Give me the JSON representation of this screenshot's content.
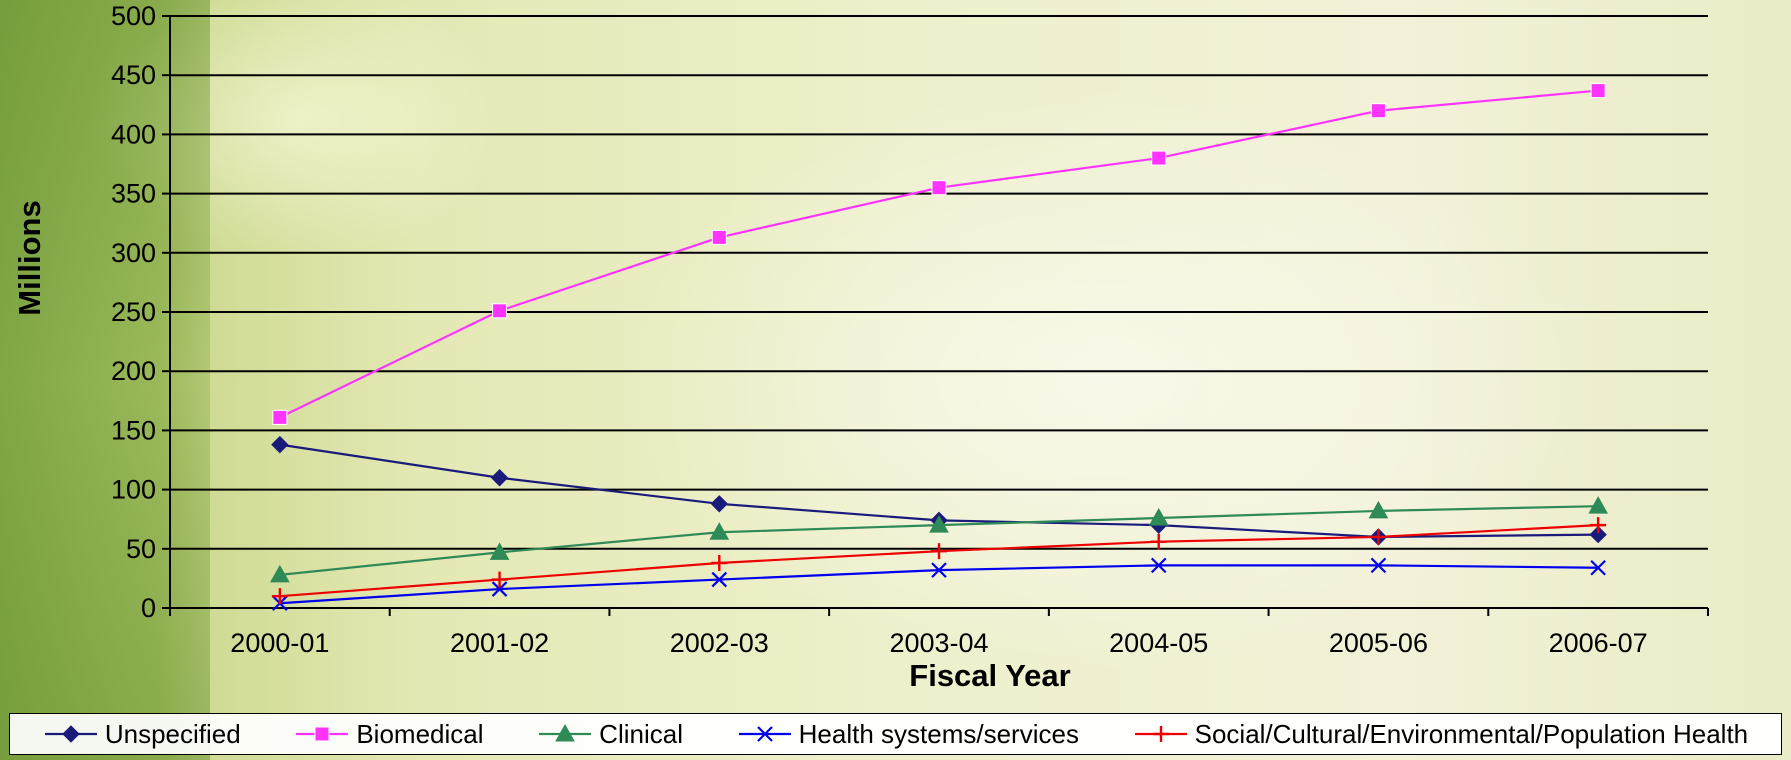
{
  "chart_data": {
    "type": "line",
    "title": "",
    "xlabel": "Fiscal Year",
    "ylabel": "Millions",
    "ylim": [
      0,
      500
    ],
    "yticks": [
      0,
      50,
      100,
      150,
      200,
      250,
      300,
      350,
      400,
      450,
      500
    ],
    "categories": [
      "2000-01",
      "2001-02",
      "2002-03",
      "2003-04",
      "2004-05",
      "2005-06",
      "2006-07"
    ],
    "grid": "horizontal",
    "legend_position": "bottom",
    "series": [
      {
        "name": "Unspecified",
        "color": "#1a1a7a",
        "marker": "diamond",
        "values": [
          138,
          110,
          88,
          74,
          70,
          60,
          62
        ]
      },
      {
        "name": "Biomedical",
        "color": "#ff33ff",
        "marker": "square",
        "values": [
          161,
          251,
          313,
          355,
          380,
          420,
          437
        ]
      },
      {
        "name": "Clinical",
        "color": "#2e8b57",
        "marker": "triangle",
        "values": [
          28,
          47,
          64,
          70,
          76,
          82,
          86
        ]
      },
      {
        "name": "Health systems/services",
        "color": "#0000ee",
        "marker": "x",
        "values": [
          4,
          16,
          24,
          32,
          36,
          36,
          34
        ]
      },
      {
        "name": "Social/Cultural/Environmental/Population Health",
        "color": "#ee0000",
        "marker": "plus",
        "values": [
          10,
          24,
          38,
          48,
          56,
          60,
          70
        ]
      }
    ]
  }
}
